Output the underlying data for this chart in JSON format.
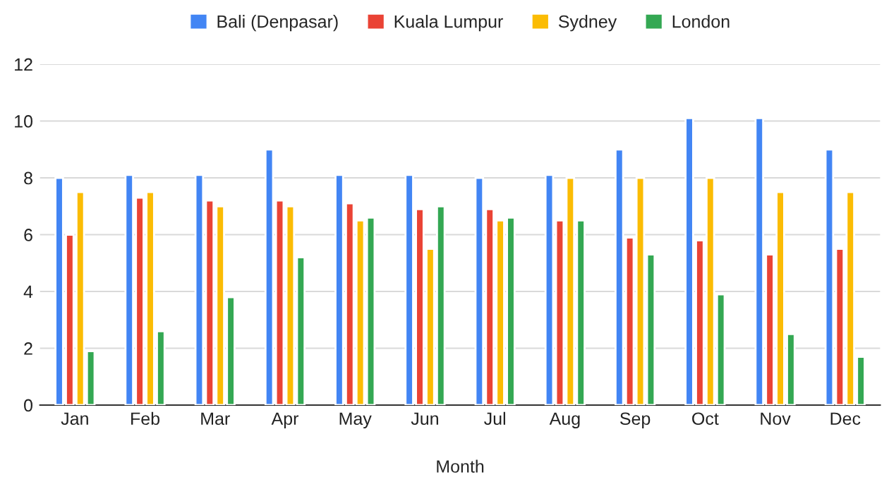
{
  "chart_data": {
    "type": "bar",
    "xlabel": "Month",
    "categories": [
      "Jan",
      "Feb",
      "Mar",
      "Apr",
      "May",
      "Jun",
      "Jul",
      "Aug",
      "Sep",
      "Oct",
      "Nov",
      "Dec"
    ],
    "series": [
      {
        "name": "Bali (Denpasar)",
        "color": "#4285f4",
        "values": [
          8,
          8.1,
          8.1,
          9,
          8.1,
          8.1,
          8,
          8.1,
          9,
          10.1,
          10.1,
          9
        ]
      },
      {
        "name": "Kuala Lumpur",
        "color": "#ea4335",
        "values": [
          6,
          7.3,
          7.2,
          7.2,
          7.1,
          6.9,
          6.9,
          6.5,
          5.9,
          5.8,
          5.3,
          5.5
        ]
      },
      {
        "name": "Sydney",
        "color": "#fbbc04",
        "values": [
          7.5,
          7.5,
          7,
          7,
          6.5,
          5.5,
          6.5,
          8,
          8,
          8,
          7.5,
          7.5
        ]
      },
      {
        "name": "London",
        "color": "#34a853",
        "values": [
          1.9,
          2.6,
          3.8,
          5.2,
          6.6,
          7,
          6.6,
          6.5,
          5.3,
          3.9,
          2.5,
          1.7
        ]
      }
    ],
    "ylim": [
      0,
      12
    ],
    "yticks": [
      0,
      2,
      4,
      6,
      8,
      10,
      12
    ],
    "grid": "y",
    "legend": "top"
  }
}
